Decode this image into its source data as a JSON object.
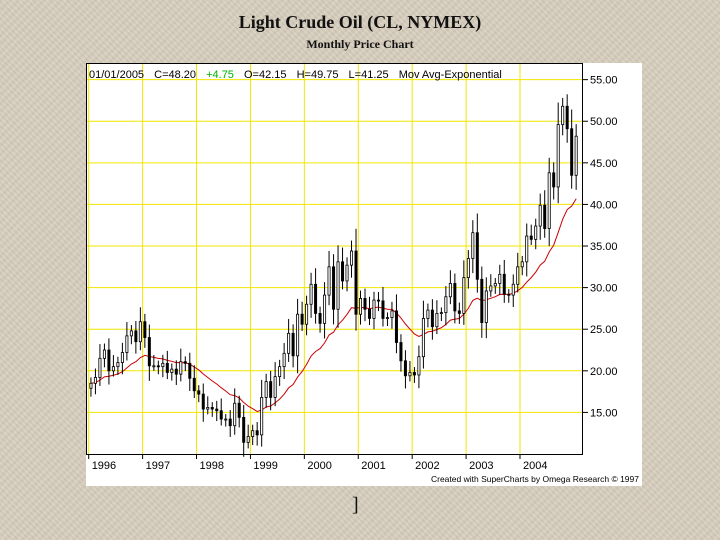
{
  "page": {
    "title": "Light Crude Oil (CL, NYMEX)",
    "subtitle": "Monthly Price Chart",
    "footer_mark": "]"
  },
  "chart_data": {
    "type": "candlestick",
    "header": {
      "date": "01/01/2005",
      "close": "C=48.20",
      "change": "+4.75",
      "open": "O=42.15",
      "high": "H=49.75",
      "low": "L=41.25",
      "indicator": "Mov Avg-Exponential"
    },
    "credit": "Created with SuperCharts by Omega Research © 1997",
    "ylim": [
      10,
      57
    ],
    "xlim": [
      1995.95,
      2005.15
    ],
    "y_ticks": [
      "15.00",
      "20.00",
      "25.00",
      "30.00",
      "35.00",
      "40.00",
      "45.00",
      "50.00",
      "55.00"
    ],
    "x_ticks": [
      {
        "label": "1996",
        "x": 1996.0
      },
      {
        "label": "1997",
        "x": 1997.0
      },
      {
        "label": "1998",
        "x": 1998.0
      },
      {
        "label": "1999",
        "x": 1999.0
      },
      {
        "label": "2000",
        "x": 2000.0
      },
      {
        "label": "2001",
        "x": 2001.0
      },
      {
        "label": "2002",
        "x": 2002.0
      },
      {
        "label": "2003",
        "x": 2003.0
      },
      {
        "label": "2004",
        "x": 2004.0
      }
    ],
    "grid": true,
    "colors": {
      "grid": "#f2e600",
      "candle": "#000000",
      "moving_average": "#cc0000",
      "change": "#00b000"
    },
    "close_series": [
      [
        "1996-01",
        18.5
      ],
      [
        "1996-02",
        19.2
      ],
      [
        "1996-03",
        21.5
      ],
      [
        "1996-04",
        22.5
      ],
      [
        "1996-05",
        20.0
      ],
      [
        "1996-06",
        20.5
      ],
      [
        "1996-07",
        21.0
      ],
      [
        "1996-08",
        22.2
      ],
      [
        "1996-09",
        24.2
      ],
      [
        "1996-10",
        24.8
      ],
      [
        "1996-11",
        23.5
      ],
      [
        "1996-12",
        25.9
      ],
      [
        "1997-01",
        24.0
      ],
      [
        "1997-02",
        20.6
      ],
      [
        "1997-03",
        20.6
      ],
      [
        "1997-04",
        20.5
      ],
      [
        "1997-05",
        20.9
      ],
      [
        "1997-06",
        19.8
      ],
      [
        "1997-07",
        20.2
      ],
      [
        "1997-08",
        19.6
      ],
      [
        "1997-09",
        21.1
      ],
      [
        "1997-10",
        20.9
      ],
      [
        "1997-11",
        19.1
      ],
      [
        "1997-12",
        17.6
      ],
      [
        "1998-01",
        17.2
      ],
      [
        "1998-02",
        15.4
      ],
      [
        "1998-03",
        15.6
      ],
      [
        "1998-04",
        15.4
      ],
      [
        "1998-05",
        15.2
      ],
      [
        "1998-06",
        14.2
      ],
      [
        "1998-07",
        14.2
      ],
      [
        "1998-08",
        13.4
      ],
      [
        "1998-09",
        16.1
      ],
      [
        "1998-10",
        14.4
      ],
      [
        "1998-11",
        11.4
      ],
      [
        "1998-12",
        12.1
      ],
      [
        "1999-01",
        12.8
      ],
      [
        "1999-02",
        12.3
      ],
      [
        "1999-03",
        16.8
      ],
      [
        "1999-04",
        18.7
      ],
      [
        "1999-05",
        16.8
      ],
      [
        "1999-06",
        19.3
      ],
      [
        "1999-07",
        20.5
      ],
      [
        "1999-08",
        22.1
      ],
      [
        "1999-09",
        24.5
      ],
      [
        "1999-10",
        21.8
      ],
      [
        "1999-11",
        26.8
      ],
      [
        "1999-12",
        25.6
      ],
      [
        "2000-01",
        28.0
      ],
      [
        "2000-02",
        30.4
      ],
      [
        "2000-03",
        26.9
      ],
      [
        "2000-04",
        25.7
      ],
      [
        "2000-05",
        29.1
      ],
      [
        "2000-06",
        32.5
      ],
      [
        "2000-07",
        27.4
      ],
      [
        "2000-08",
        33.1
      ],
      [
        "2000-09",
        30.8
      ],
      [
        "2000-10",
        32.7
      ],
      [
        "2000-11",
        34.4
      ],
      [
        "2000-12",
        26.8
      ],
      [
        "2001-01",
        28.7
      ],
      [
        "2001-02",
        27.4
      ],
      [
        "2001-03",
        26.3
      ],
      [
        "2001-04",
        28.5
      ],
      [
        "2001-05",
        28.4
      ],
      [
        "2001-06",
        26.3
      ],
      [
        "2001-07",
        26.4
      ],
      [
        "2001-08",
        27.2
      ],
      [
        "2001-09",
        23.4
      ],
      [
        "2001-10",
        21.2
      ],
      [
        "2001-11",
        19.4
      ],
      [
        "2001-12",
        19.8
      ],
      [
        "2002-01",
        19.5
      ],
      [
        "2002-02",
        21.7
      ],
      [
        "2002-03",
        26.3
      ],
      [
        "2002-04",
        27.3
      ],
      [
        "2002-05",
        25.3
      ],
      [
        "2002-06",
        26.9
      ],
      [
        "2002-07",
        27.0
      ],
      [
        "2002-08",
        28.9
      ],
      [
        "2002-09",
        30.5
      ],
      [
        "2002-10",
        27.2
      ],
      [
        "2002-11",
        26.9
      ],
      [
        "2002-12",
        31.2
      ],
      [
        "2003-01",
        33.5
      ],
      [
        "2003-02",
        36.6
      ],
      [
        "2003-03",
        31.0
      ],
      [
        "2003-04",
        25.8
      ],
      [
        "2003-05",
        29.6
      ],
      [
        "2003-06",
        30.2
      ],
      [
        "2003-07",
        30.5
      ],
      [
        "2003-08",
        31.6
      ],
      [
        "2003-09",
        29.2
      ],
      [
        "2003-10",
        29.1
      ],
      [
        "2003-11",
        30.4
      ],
      [
        "2003-12",
        32.5
      ],
      [
        "2004-01",
        33.1
      ],
      [
        "2004-02",
        36.2
      ],
      [
        "2004-03",
        35.8
      ],
      [
        "2004-04",
        37.4
      ],
      [
        "2004-05",
        39.9
      ],
      [
        "2004-06",
        37.1
      ],
      [
        "2004-07",
        43.8
      ],
      [
        "2004-08",
        42.1
      ],
      [
        "2004-09",
        49.6
      ],
      [
        "2004-10",
        51.8
      ],
      [
        "2004-11",
        49.1
      ],
      [
        "2004-12",
        43.5
      ],
      [
        "2005-01",
        48.2
      ]
    ]
  }
}
